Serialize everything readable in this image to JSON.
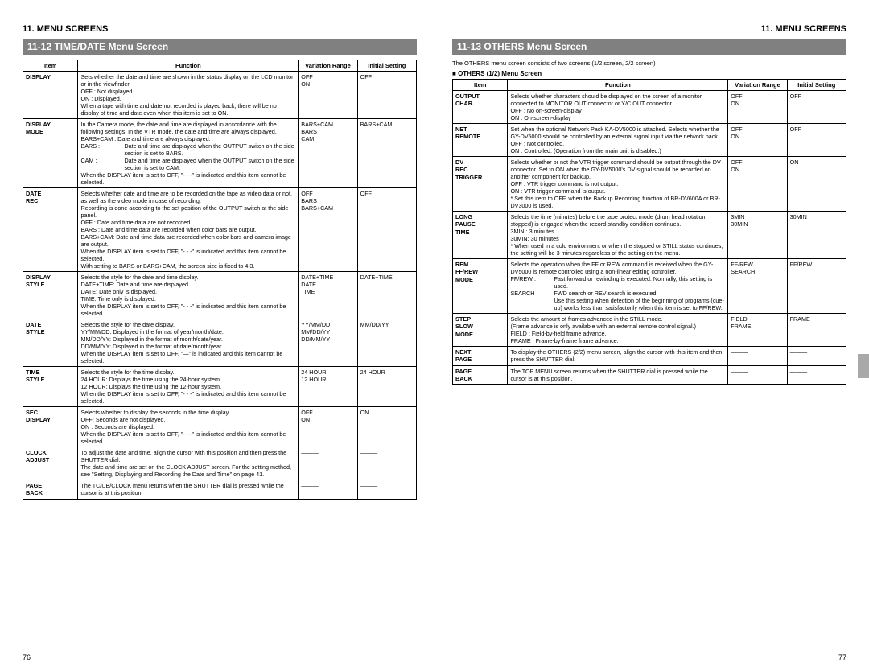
{
  "left": {
    "section_heading": "11. MENU SCREENS",
    "title": "11-12  TIME/DATE Menu Screen",
    "page_number": "76",
    "headers": {
      "item": "Item",
      "function": "Function",
      "variation": "Variation Range",
      "initial": "Initial Setting"
    },
    "rows": [
      {
        "item": "DISPLAY",
        "func_lines": [
          "Sets whether the date and time are shown in the status display on the LCD monitor or in the viewfinder.",
          "OFF : Not displayed.",
          "ON  : Displayed.",
          "When a tape with time and date not recorded is played back, there will be no display of time and date even when this item is set to ON."
        ],
        "var_lines": [
          "OFF",
          "ON"
        ],
        "init": "OFF"
      },
      {
        "item": "DISPLAY MODE",
        "func_lines": [
          "In the Camera mode, the date and time are displayed in accordance with the following settings. In the VTR mode, the date and time are always displayed.",
          "BARS+CAM : Date and time are always displayed.",
          {
            "def_key": "BARS :",
            "def_val": "Date and time are displayed when the OUTPUT switch on the side section is set to BARS."
          },
          {
            "def_key": "CAM :",
            "def_val": "Date and time are displayed when the OUTPUT switch on the side section is set to CAM."
          },
          "When the DISPLAY item is set to OFF, \"- - -\" is indicated and this item cannot be selected."
        ],
        "var_lines": [
          "BARS+CAM",
          "BARS",
          "CAM"
        ],
        "init": "BARS+CAM"
      },
      {
        "item": "DATE REC",
        "func_lines": [
          "Selects whether date and time are to be recorded on the tape as video data or not, as well as the video mode in case of recording.",
          "Recording is done according to the set position of the OUTPUT switch at the side panel.",
          "OFF   : Date and time data are not recorded.",
          "BARS : Date and time data are recorded when color bars are output.",
          "BARS+CAM: Date and time data are recorded when color bars and camera image are output.",
          "When the DISPLAY item is set to OFF, \"- - -\" is indicated and this item cannot be selected.",
          "With setting to BARS or BARS+CAM, the screen size is fixed to 4:3."
        ],
        "var_lines": [
          "OFF",
          "BARS",
          "BARS+CAM"
        ],
        "init": "OFF"
      },
      {
        "item": "DISPLAY STYLE",
        "func_lines": [
          "Selects the style for the date and time display.",
          "DATE+TIME: Date and time are displayed.",
          "DATE: Date only is displayed.",
          "TIME: Time only is displayed.",
          "When the DISPLAY item is set to OFF, \"- - -\" is indicated and this item cannot be selected."
        ],
        "var_lines": [
          "DATE+TIME",
          "DATE",
          "TIME"
        ],
        "init": "DATE+TIME"
      },
      {
        "item": "DATE STYLE",
        "func_lines": [
          "Selects the style for the date display.",
          "YY/MM/DD: Displayed in the format of year/month/date.",
          "MM/DD/YY: Displayed in the format of month/date/year.",
          "DD/MM/YY: Displayed in the format of date/month/year.",
          "When the DISPLAY item is set to OFF, \"—\" is indicated and this item cannot be selected."
        ],
        "var_lines": [
          "YY/MM/DD",
          "MM/DD/YY",
          "DD/MM/YY"
        ],
        "init": "MM/DD/YY"
      },
      {
        "item": "TIME STYLE",
        "func_lines": [
          "Selects the style for the time display.",
          "24 HOUR: Displays the time using the 24-hour system.",
          "12 HOUR: Displays the time using the 12-hour system.",
          "When the DISPLAY item is set to OFF, \"- - -\" is indicated and this item cannot be selected."
        ],
        "var_lines": [
          "24 HOUR",
          "12 HOUR"
        ],
        "init": "24 HOUR"
      },
      {
        "item": "SEC DISPLAY",
        "func_lines": [
          "Selects whether to display the seconds in the time display.",
          "OFF: Seconds are not displayed.",
          "ON  : Seconds are displayed.",
          "When the DISPLAY item is set to OFF, \"- - -\" is indicated and this item cannot be selected."
        ],
        "var_lines": [
          "OFF",
          "ON"
        ],
        "init": "ON"
      },
      {
        "item": "CLOCK ADJUST",
        "func_lines": [
          "To adjust the date and time, align the cursor with this position and then press the SHUTTER dial.",
          "The date and time are set on the CLOCK ADJUST screen. For the setting method, see \"Setting, Displaying and Recording the Date and Time\" on page 41."
        ],
        "dash": true
      },
      {
        "item": "PAGE BACK",
        "func_lines": [
          "The TC/UB/CLOCK menu returns when the SHUTTER dial is pressed while the cursor is at this position."
        ],
        "dash": true
      }
    ]
  },
  "right": {
    "section_heading": "11. MENU SCREENS",
    "title": "11-13  OTHERS Menu Screen",
    "intro": "The OTHERS menu screen consists of two screens (1/2 screen, 2/2 screen)",
    "sub": "OTHERS (1/2) Menu Screen",
    "page_number": "77",
    "headers": {
      "item": "Item",
      "function": "Function",
      "variation": "Variation Range",
      "initial": "Initial Setting"
    },
    "rows": [
      {
        "item": "OUTPUT CHAR.",
        "func_lines": [
          "Selects whether characters should be displayed on the screen of a monitor connected to MONITOR OUT connector or Y/C OUT connector.",
          "OFF : No on-screen-display",
          "ON  : On-screen-display"
        ],
        "var_lines": [
          "OFF",
          "ON"
        ],
        "init": "OFF"
      },
      {
        "item": "NET REMOTE",
        "func_lines": [
          "Set when the optional Network Pack KA-DV5000 is attached. Selects whether the GY-DV5000 should be controlled by an external signal input via the network pack.",
          "OFF : Not controlled.",
          "ON  : Controlled. (Operation from the main unit is disabled.)"
        ],
        "var_lines": [
          "OFF",
          "ON"
        ],
        "init": "OFF"
      },
      {
        "item": "DV REC TRIGGER",
        "func_lines": [
          "Selects whether or not the VTR trigger command should be output through the DV connector. Set to ON when the GY-DV5000's DV signal should be recorded on another component for backup.",
          "OFF : VTR trigger command is not output.",
          "ON  : VTR trigger command is output.",
          "* Set this item to OFF, when the Backup Recording function of BR-DV600A or BR-DV3000 is used."
        ],
        "var_lines": [
          "OFF",
          "ON"
        ],
        "init": "ON"
      },
      {
        "item": "LONG PAUSE TIME",
        "func_lines": [
          "Selects the time (minutes) before the tape protect mode (drum head rotation stopped) is engaged when the record-standby condition continues.",
          "3MIN  : 3 minutes",
          "30MIN: 30 minutes",
          "* When used in a cold environment or when the stopped or STILL status continues, the setting will be 3 minutes regardless of the setting on the menu."
        ],
        "var_lines": [
          "3MIN",
          "30MIN"
        ],
        "init": "30MIN"
      },
      {
        "item": "REM FF/REW MODE",
        "func_lines": [
          "Selects the operation when the FF or REW command is received when the GY-DV5000 is remote controlled using a non-linear editing controller.",
          {
            "def_key": "FF/REW :",
            "def_val": "Fast forward or rewinding is executed. Normally, this setting is used."
          },
          {
            "def_key": "SEARCH :",
            "def_val": "FWD search or REV search is executed."
          },
          {
            "indent": true,
            "text": "Use this setting when detection of the beginning of programs (cue-up) works less than satisfactorily when this item is set to FF/REW."
          }
        ],
        "var_lines": [
          "FF/REW",
          "SEARCH"
        ],
        "init": "FF/REW"
      },
      {
        "item": "STEP SLOW MODE",
        "func_lines": [
          "Selects the amount of frames advanced in the STILL mode.",
          "(Frame advance is only available with an external remote control signal.)",
          "FIELD  : Field-by-field frame advance.",
          "FRAME : Frame-by-frame frame advance."
        ],
        "var_lines": [
          "FIELD",
          "FRAME"
        ],
        "init": "FRAME"
      },
      {
        "item": "NEXT PAGE",
        "func_lines": [
          "To display the OTHERS (2/2) menu screen, align the cursor with this item and then press the SHUTTER dial."
        ],
        "dash": true
      },
      {
        "item": "PAGE BACK",
        "func_lines": [
          "The TOP MENU screen returns when the SHUTTER dial is pressed while the cursor is at this position."
        ],
        "dash": true
      }
    ]
  }
}
